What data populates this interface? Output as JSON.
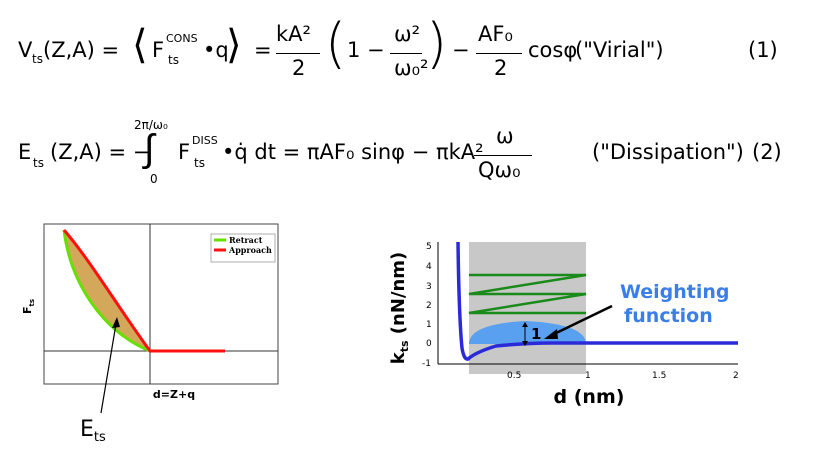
{
  "equations": [
    {
      "lhs": "V",
      "lhs_sub": "ts",
      "args": "(Z,A) =",
      "bracket_term": "F",
      "bracket_sup": "CONS",
      "bracket_sub": "ts",
      "bracket_tail": "•q",
      "equals": "=",
      "frac1_num": "kA²",
      "frac1_den": "2",
      "paren_one": "1 −",
      "frac2_num": "ω²",
      "frac2_den": "ω₀²",
      "minus": "−",
      "frac3_num": "AF₀",
      "frac3_den": "2",
      "tail": "cosφ",
      "label": "(\"Virial\")",
      "number": "(1)"
    },
    {
      "lhs": "E",
      "lhs_sub": "ts",
      "args": "(Z,A) = −",
      "int_upper": "2π/ω₀",
      "int_lower": "0",
      "integrand": "F",
      "integrand_sup": "DISS",
      "integrand_sub": "ts",
      "integrand_tail": "•q̇ dt = πAF₀ sinφ − πkA²",
      "frac_num": "ω",
      "frac_den": "Qω₀",
      "label": "(\"Dissipation\")",
      "number": "(2)"
    }
  ],
  "left_plot": {
    "legend": [
      "Retract",
      "Approach"
    ],
    "ylabel_main": "F",
    "ylabel_sub": "ts",
    "xlabel": "d=Z+q",
    "annotation_main": "E",
    "annotation_sub": "ts",
    "colors": {
      "retract": "#66e000",
      "approach": "#ff1010",
      "fill": "#d4a85a"
    }
  },
  "right_plot": {
    "ylabel_main": "k",
    "ylabel_sub": "ts",
    "ylabel_unit": " (nN/nm)",
    "xlabel": "d (nm)",
    "yticks": [
      "5",
      "4",
      "3",
      "2",
      "1",
      "0",
      "-1"
    ],
    "xticks": [
      "0.5",
      "1",
      "1.5",
      "2"
    ],
    "annotation_text_1": "Weighting",
    "annotation_text_2": "function",
    "marker_label": "1",
    "colors": {
      "curve": "#2a2ad8",
      "weighting": "#5aa0f0",
      "shade": "#c8c8c8",
      "oscillation": "#1a8a1a",
      "annotation": "#3a7ee8"
    }
  }
}
